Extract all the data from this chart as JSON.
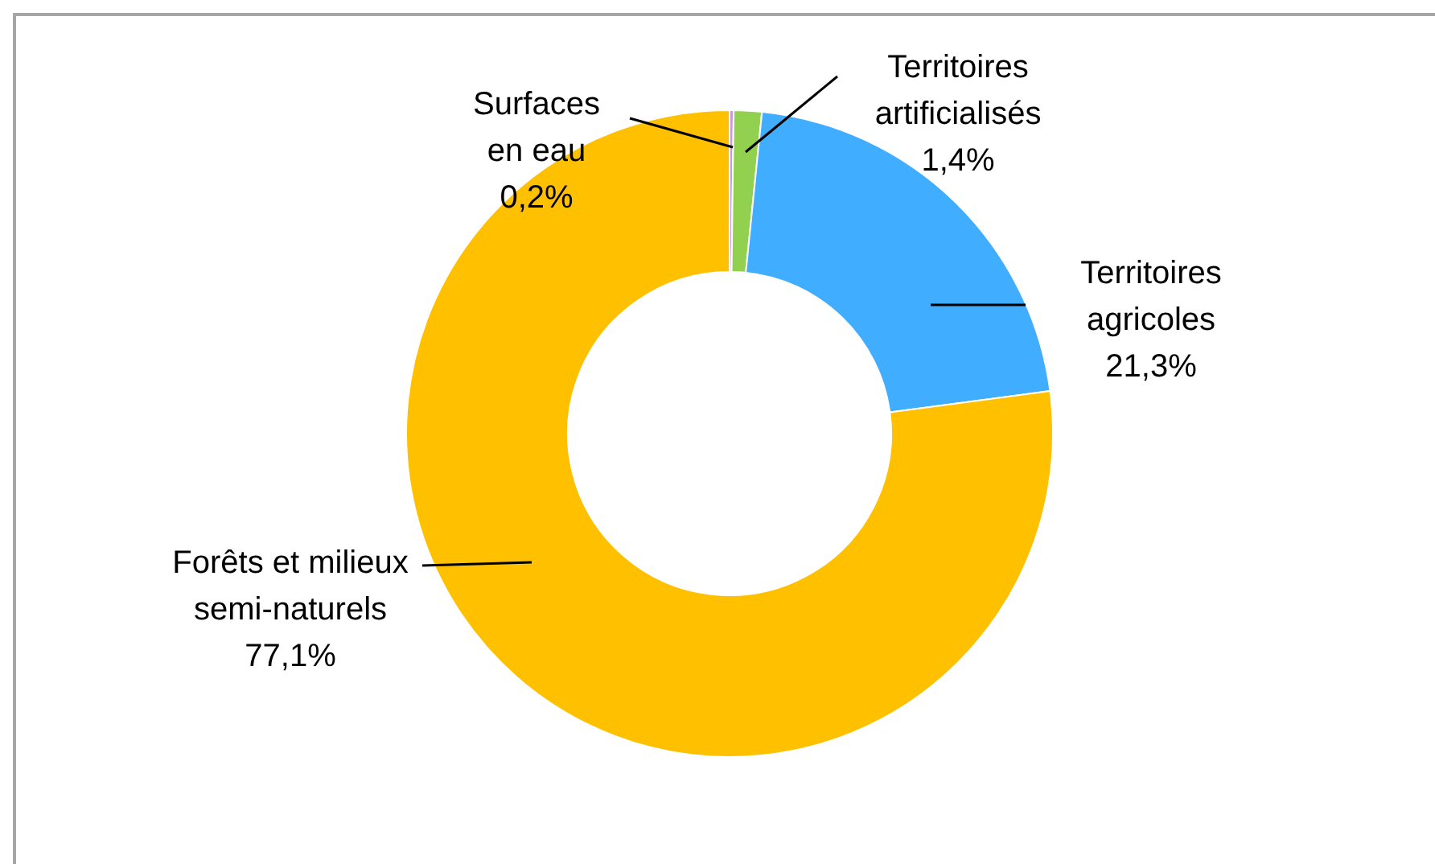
{
  "chart_data": {
    "type": "donut",
    "categories": [
      "Surfaces en eau",
      "Territoires artificialisés",
      "Territoires agricoles",
      "Forêts et milieux semi-naturels"
    ],
    "values": [
      0.2,
      1.4,
      21.3,
      77.1
    ],
    "value_labels": [
      "0,2%",
      "1,4%",
      "21,3%",
      "77,1%"
    ],
    "colors": [
      "#cc99cc",
      "#92d050",
      "#41adff",
      "#ffc000"
    ],
    "legend": false
  }
}
